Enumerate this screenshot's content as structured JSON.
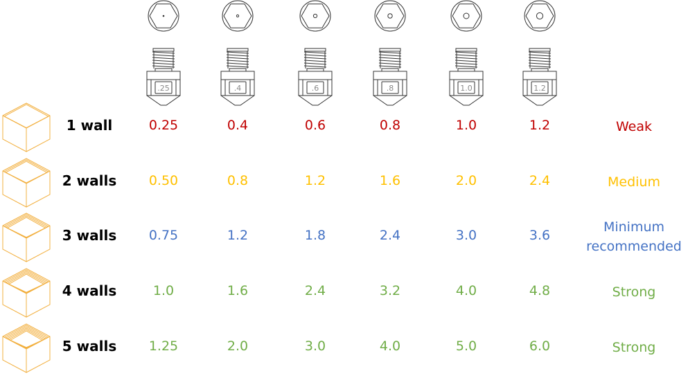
{
  "nozzles": [
    {
      "label": ".25",
      "hole": 0.8
    },
    {
      "label": ".4",
      "hole": 1.6
    },
    {
      "label": ".6",
      "hole": 2.6
    },
    {
      "label": ".8",
      "hole": 3.2
    },
    {
      "label": "1.0",
      "hole": 4.0
    },
    {
      "label": "1.2",
      "hole": 4.6
    }
  ],
  "rows": [
    {
      "walls": "1 wall",
      "values": [
        "0.25",
        "0.4",
        "0.6",
        "0.8",
        "1.0",
        "1.2"
      ],
      "strength": "Weak",
      "color": "#c00000",
      "wall_count": 1
    },
    {
      "walls": "2 walls",
      "values": [
        "0.50",
        "0.8",
        "1.2",
        "1.6",
        "2.0",
        "2.4"
      ],
      "strength": "Medium",
      "color": "#ffc000",
      "wall_count": 2
    },
    {
      "walls": "3 walls",
      "values": [
        "0.75",
        "1.2",
        "1.8",
        "2.4",
        "3.0",
        "3.6"
      ],
      "strength": "Minimum recommended",
      "strength_lines": [
        "Minimum",
        "recommended"
      ],
      "color": "#4472c4",
      "wall_count": 3
    },
    {
      "walls": "4 walls",
      "values": [
        "1.0",
        "1.6",
        "2.4",
        "3.2",
        "4.0",
        "4.8"
      ],
      "strength": "Strong",
      "color": "#70ad47",
      "wall_count": 4
    },
    {
      "walls": "5 walls",
      "values": [
        "1.25",
        "2.0",
        "3.0",
        "4.0",
        "5.0",
        "6.0"
      ],
      "strength": "Strong",
      "color": "#70ad47",
      "wall_count": 5
    }
  ],
  "colors": {
    "cube": "#f2b040",
    "nozzle_line": "#333333"
  },
  "icons": [
    "nozzle-top-view-icon",
    "nozzle-side-view-icon",
    "cube-wall-icon"
  ]
}
